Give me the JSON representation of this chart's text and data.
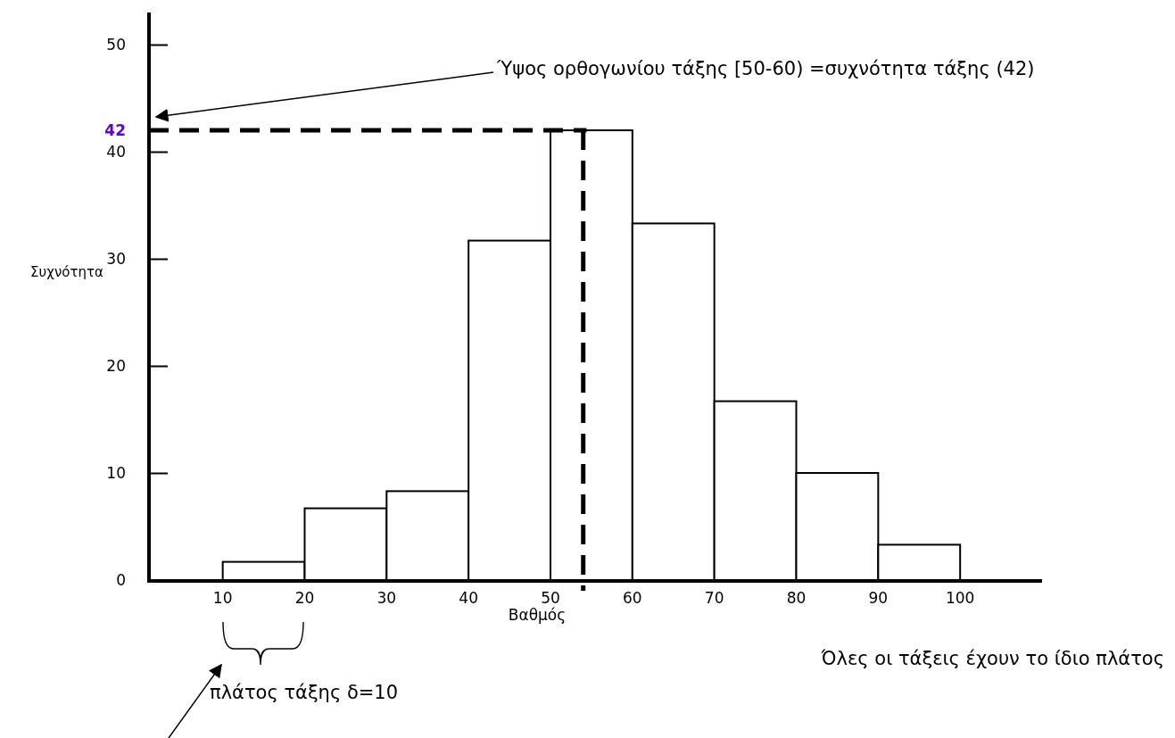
{
  "chart_data": {
    "type": "histogram",
    "xlabel": "Βαθμός",
    "ylabel": "Συχνότητα",
    "bins": [
      10,
      20,
      30,
      40,
      50,
      60,
      70,
      80,
      90,
      100
    ],
    "values": [
      1.7,
      6.7,
      8.3,
      31.7,
      42,
      33.3,
      16.7,
      10,
      3.3
    ],
    "color": "#ffffff",
    "xlim": [
      1,
      110
    ],
    "xticks": [
      10,
      20,
      30,
      40,
      50,
      60,
      70,
      80,
      90,
      100
    ],
    "ylim": [
      0,
      53
    ],
    "yticks": [
      0,
      10,
      20,
      30,
      40,
      50
    ],
    "grid": false,
    "ref_lines": [
      {
        "axis": "y",
        "value": 42,
        "label": "42",
        "color": "#000000",
        "line_style": "dashed"
      },
      {
        "axis": "x",
        "value": 54,
        "label": null,
        "color": "#000000",
        "line_style": "dashed"
      }
    ],
    "annotations": [
      "Ύψος ορθογωνίου τάξης [50-60) =συχνότητα  τάξης (42)",
      "πλάτος τάξης δ=10",
      "Όλες οι τάξεις έχουν το ίδιο πλάτος"
    ]
  }
}
